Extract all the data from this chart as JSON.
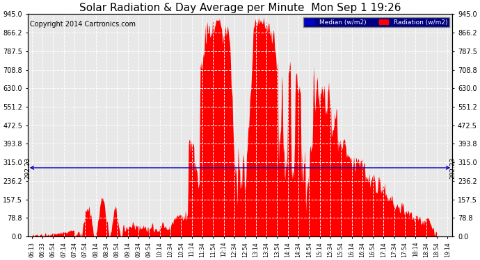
{
  "title": "Solar Radiation & Day Average per Minute  Mon Sep 1 19:26",
  "copyright": "Copyright 2014 Cartronics.com",
  "median_value": 292.23,
  "median_label": "292.23",
  "ylim": [
    0.0,
    945.0
  ],
  "yticks": [
    0.0,
    78.8,
    157.5,
    236.2,
    315.0,
    393.8,
    472.5,
    551.2,
    630.0,
    708.8,
    787.5,
    866.2,
    945.0
  ],
  "ytick_labels": [
    "0.0",
    "78.8",
    "157.5",
    "236.2",
    "315.0",
    "393.8",
    "472.5",
    "551.2",
    "630.0",
    "708.8",
    "787.5",
    "866.2",
    "945.0"
  ],
  "background_color": "#ffffff",
  "plot_bg_color": "#e8e8e8",
  "bar_color": "#ff0000",
  "median_color": "#0000bb",
  "title_fontsize": 11,
  "copyright_fontsize": 7,
  "tick_fontsize": 7,
  "legend_median_label": "Median (w/m2)",
  "legend_radiation_label": "Radiation (w/m2)",
  "legend_median_color": "#0000cc",
  "legend_radiation_color": "#ff0000",
  "legend_bg_color": "#000080",
  "xtick_labels": [
    "06:13",
    "06:33",
    "06:54",
    "07:14",
    "07:34",
    "07:54",
    "08:14",
    "08:34",
    "08:54",
    "09:14",
    "09:34",
    "09:54",
    "10:14",
    "10:34",
    "10:54",
    "11:14",
    "11:34",
    "11:54",
    "12:14",
    "12:34",
    "12:54",
    "13:14",
    "13:34",
    "13:54",
    "14:14",
    "14:34",
    "14:54",
    "15:14",
    "15:34",
    "15:54",
    "16:14",
    "16:34",
    "16:54",
    "17:14",
    "17:34",
    "17:54",
    "18:14",
    "18:34",
    "18:54",
    "19:14"
  ]
}
